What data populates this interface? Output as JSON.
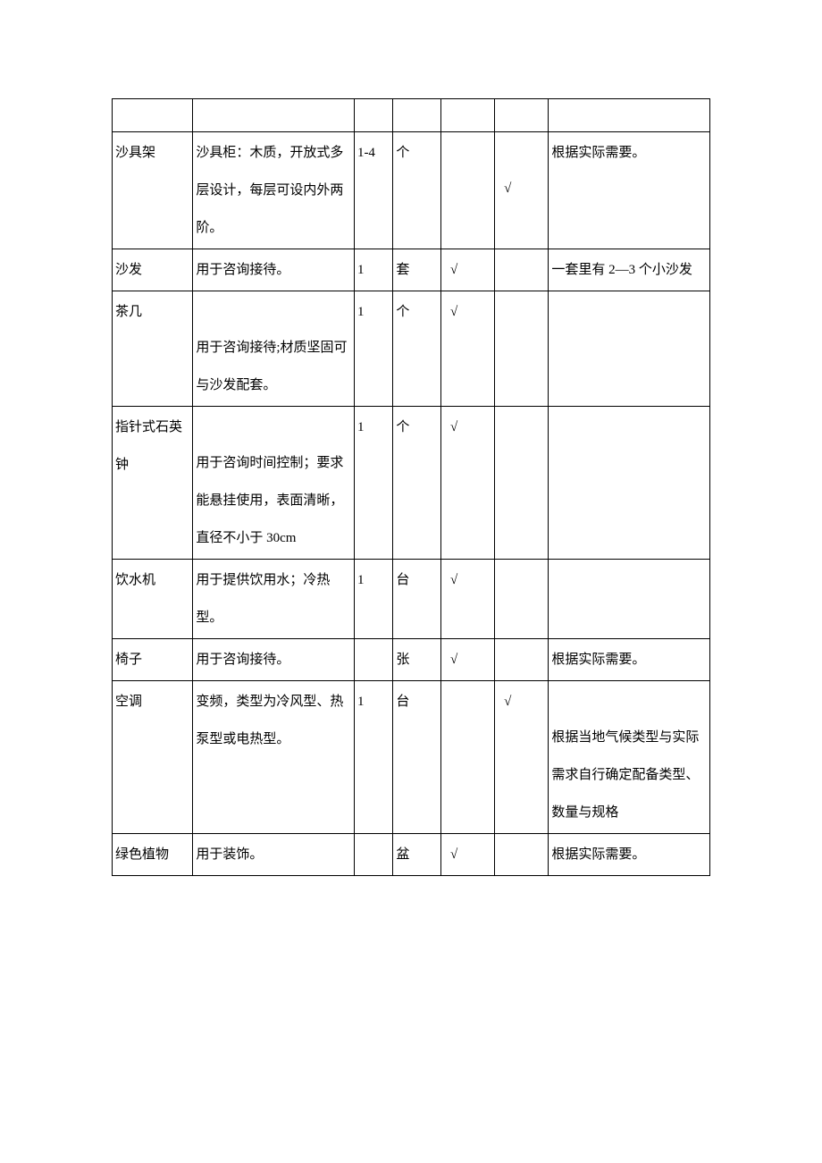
{
  "table": {
    "columns": [
      "name",
      "desc",
      "qty",
      "unit",
      "check1",
      "check2",
      "note"
    ],
    "column_widths_pct": [
      13.5,
      27,
      6.5,
      8,
      9,
      9,
      27
    ],
    "border_color": "#000000",
    "background_color": "#ffffff",
    "text_color": "#000000",
    "font_size_pt": 11,
    "line_height": 2.8,
    "rows": [
      {
        "name": "",
        "desc": "",
        "qty": "",
        "unit": "",
        "check1": "",
        "check2": "",
        "note": "",
        "empty_header": true
      },
      {
        "name": "沙具架",
        "desc": "沙具柜：木质，开放式多层设计，每层可设内外两阶。",
        "qty": "1-4",
        "unit": "个",
        "check1": "",
        "check2": "√",
        "note": "根据实际需要。",
        "check2_mid": true
      },
      {
        "name": "沙发",
        "desc": "用于咨询接待。",
        "qty": "1",
        "unit": "套",
        "check1": "√",
        "check2": "",
        "note": "一套里有 2—3 个小沙发"
      },
      {
        "name": "茶几",
        "desc": "用于咨询接待;材质坚固可与沙发配套。",
        "qty": "1",
        "unit": "个",
        "check1": "√",
        "check2": "",
        "note": "",
        "desc_pad_top": true
      },
      {
        "name": "指针式石英钟",
        "desc": "用于咨询时间控制；要求能悬挂使用，表面清晰，直径不小于 30cm",
        "qty": "1",
        "unit": "个",
        "check1": "√",
        "check2": "",
        "note": "",
        "desc_pad_top": true
      },
      {
        "name": "饮水机",
        "desc": "用于提供饮用水；冷热型。",
        "qty": "1",
        "unit": "台",
        "check1": "√",
        "check2": "",
        "note": ""
      },
      {
        "name": "椅子",
        "desc": "用于咨询接待。",
        "qty": "",
        "unit": "张",
        "check1": "√",
        "check2": "",
        "note": "根据实际需要。"
      },
      {
        "name": "空调",
        "desc": "变频，类型为冷风型、热泵型或电热型。",
        "qty": "1",
        "unit": "台",
        "check1": "",
        "check2": "√",
        "note": "根据当地气候类型与实际需求自行确定配备类型、数量与规格",
        "note_pad_top": true
      },
      {
        "name": "绿色植物",
        "desc": "用于装饰。",
        "qty": "",
        "unit": "盆",
        "check1": "√",
        "check2": "",
        "note": "根据实际需要。"
      }
    ]
  }
}
